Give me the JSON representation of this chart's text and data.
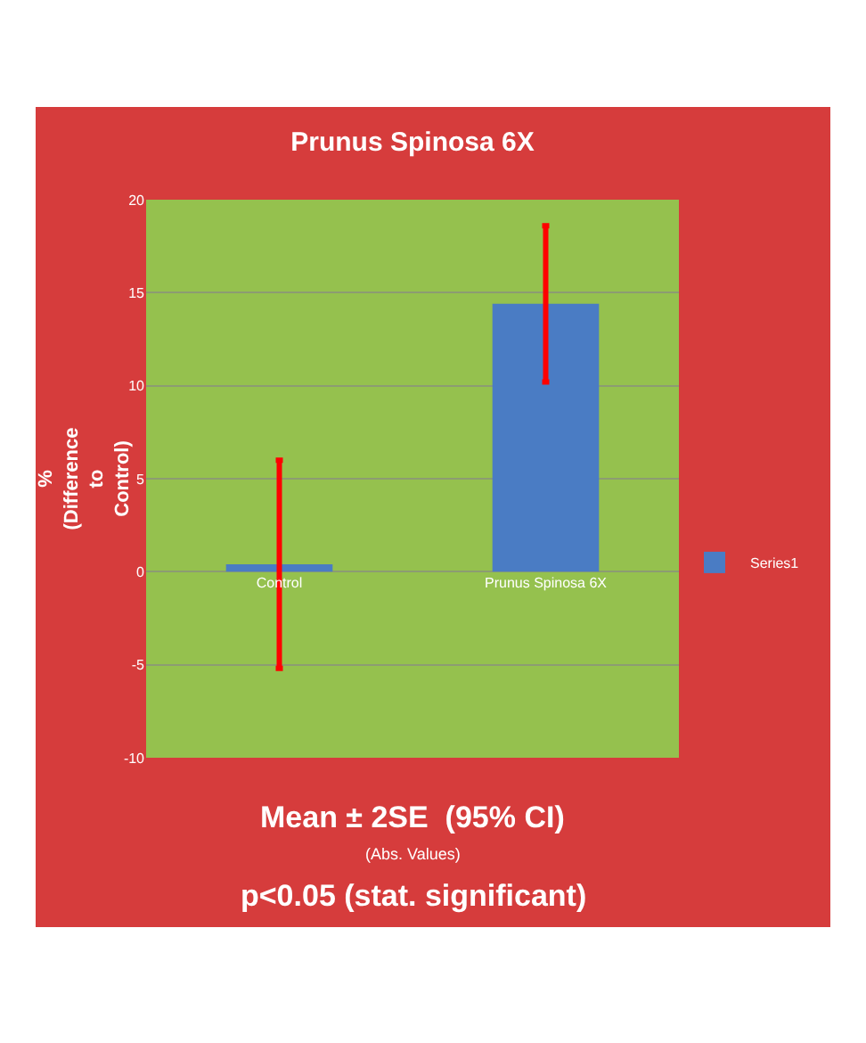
{
  "chart_data": {
    "type": "bar",
    "title": "Prunus Spinosa 6X",
    "ylabel": "% (Difference to Control)",
    "categories": [
      "Control",
      "Prunus Spinosa 6X"
    ],
    "series": [
      {
        "name": "Series1",
        "color": "#4a7cc4",
        "values": [
          0.4,
          14.4
        ],
        "errors": [
          5.6,
          4.2
        ]
      }
    ],
    "ylim": [
      -10,
      20
    ],
    "yticks": [
      -10,
      -5,
      0,
      5,
      10,
      15,
      20
    ],
    "grid": "y",
    "legend": "right",
    "annotations": [
      "Mean ± 2SE  (95% CI)",
      "(Abs. Values)",
      "p<0.05 (stat. significant)"
    ]
  }
}
